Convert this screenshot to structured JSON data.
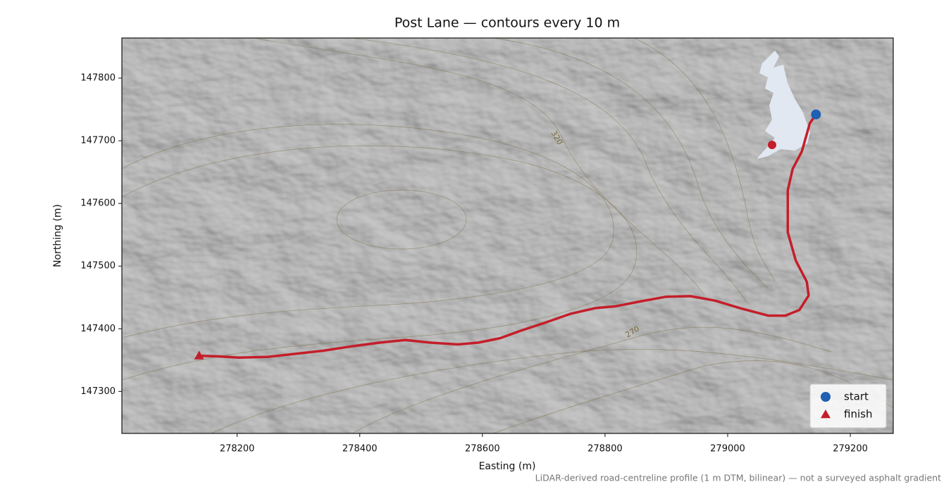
{
  "chart_data": {
    "type": "line",
    "title": "Post Lane — contours every 10 m",
    "xlabel": "Easting (m)",
    "ylabel": "Northing (m)",
    "footnote": "LiDAR-derived road-centreline profile (1 m DTM, bilinear) — not a surveyed asphalt gradient",
    "annotations": [
      "320",
      "270"
    ],
    "color": "#c41e2a",
    "x": [
      279144,
      279134,
      279121,
      279106,
      279098,
      279098,
      279111,
      279129,
      279132,
      279117,
      279094,
      279066,
      279020,
      278979,
      278939,
      278899,
      278859,
      278818,
      278784,
      278744,
      278703,
      278663,
      278629,
      278594,
      278560,
      278514,
      278474,
      278433,
      278387,
      278341,
      278295,
      278249,
      278203,
      278169,
      278138
    ],
    "values": [
      147742,
      147728,
      147683,
      147655,
      147621,
      147554,
      147509,
      147475,
      147453,
      147430,
      147421,
      147421,
      147433,
      147445,
      147452,
      147451,
      147444,
      147436,
      147433,
      147424,
      147410,
      147397,
      147385,
      147378,
      147375,
      147378,
      147382,
      147378,
      147372,
      147365,
      147360,
      147355,
      147354,
      147356,
      147357
    ],
    "markers": [
      {
        "name": "start",
        "shape": "circle",
        "color": "#1f5fb4",
        "x": 279144,
        "y": 147742
      },
      {
        "name": "finish",
        "shape": "triangle",
        "color": "#c41e2a",
        "x": 278138,
        "y": 147357
      }
    ],
    "xlim": [
      278012,
      279270
    ],
    "ylim": [
      147233,
      147864
    ],
    "xticks": [
      278200,
      278400,
      278600,
      278800,
      279000,
      279200
    ],
    "yticks": [
      147300,
      147400,
      147500,
      147600,
      147700,
      147800
    ],
    "grid": false,
    "legend": "lower right"
  }
}
